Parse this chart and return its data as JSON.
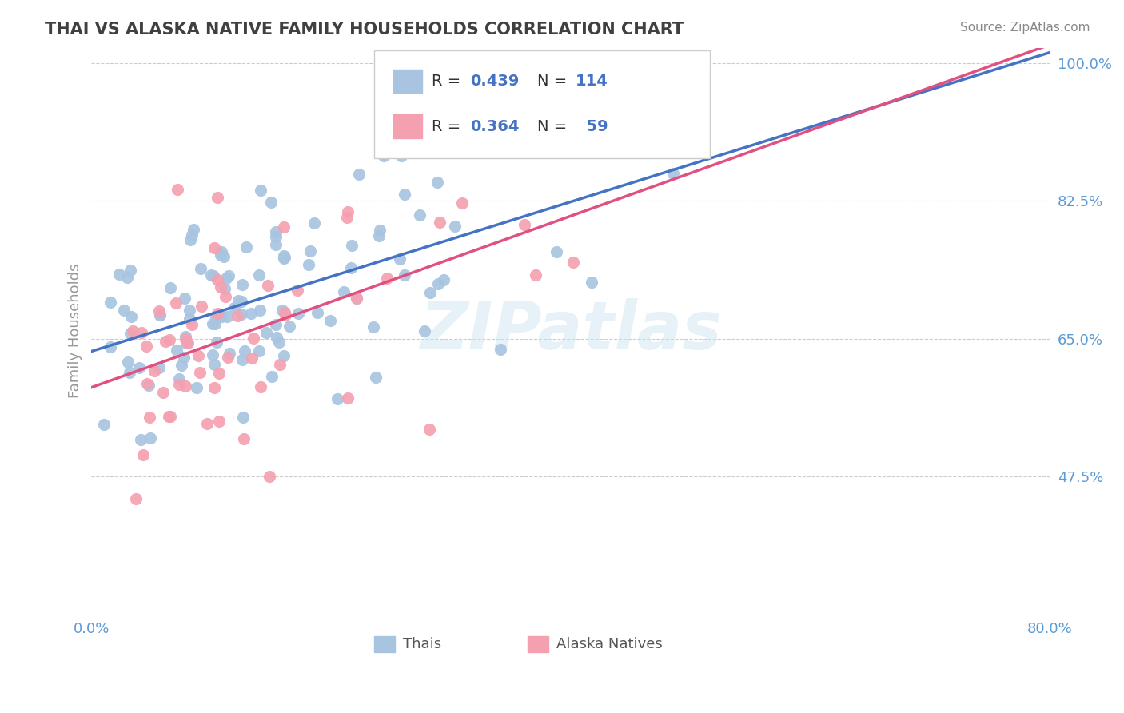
{
  "title": "THAI VS ALASKA NATIVE FAMILY HOUSEHOLDS CORRELATION CHART",
  "source": "Source: ZipAtlas.com",
  "ylabel": "Family Households",
  "xlim": [
    0.0,
    0.8
  ],
  "ylim": [
    0.3,
    1.02
  ],
  "yticks": [
    0.475,
    0.65,
    0.825,
    1.0
  ],
  "yticklabels": [
    "47.5%",
    "65.0%",
    "82.5%",
    "100.0%"
  ],
  "xticks": [
    0.0,
    0.8
  ],
  "xticklabels": [
    "0.0%",
    "80.0%"
  ],
  "thai_color": "#a8c4e0",
  "alaska_color": "#f4a0b0",
  "trend_blue": "#4472c4",
  "trend_pink": "#e05080",
  "R_thai": 0.439,
  "N_thai": 114,
  "R_alaska": 0.364,
  "N_alaska": 59,
  "legend_labels": [
    "Thais",
    "Alaska Natives"
  ],
  "title_color": "#404040",
  "tick_color": "#5b9bd5",
  "watermark": "ZIPatlas",
  "background_color": "#ffffff",
  "grid_color": "#cccccc"
}
